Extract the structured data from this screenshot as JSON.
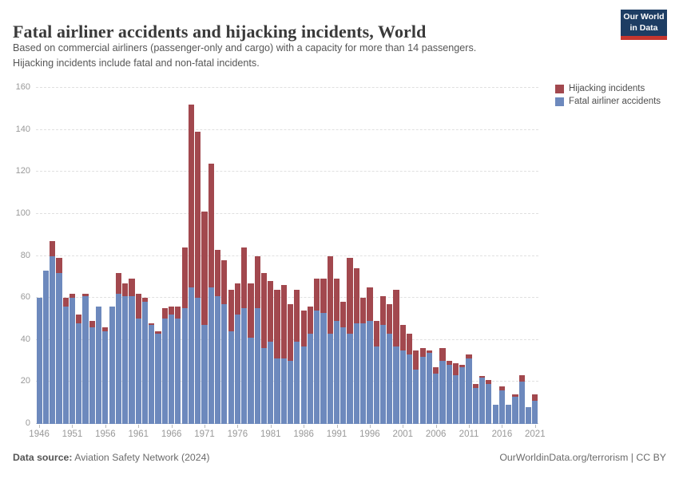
{
  "header": {
    "title": "Fatal airliner accidents and hijacking incidents, World",
    "subtitle_lines": {
      "0": "Based on commercial airliners (passenger-only and cargo) with a capacity for more than 14 passengers.",
      "1": "Hijacking incidents include fatal and non-fatal incidents."
    },
    "logo": {
      "line1": "Our World",
      "line2": "in Data",
      "bg_color": "#1d3d63",
      "accent_color": "#c5362e"
    }
  },
  "legend": {
    "items": [
      {
        "label": "Hijacking incidents",
        "color": "#a2484e"
      },
      {
        "label": "Fatal airliner accidents",
        "color": "#6d89bd"
      }
    ]
  },
  "chart_data": {
    "type": "bar",
    "stacked": true,
    "title": "Fatal airliner accidents and hijacking incidents, World",
    "xlabel": "",
    "ylabel": "",
    "ylim": [
      0,
      160
    ],
    "grid": "horizontal-dashed",
    "legend_position": "right",
    "x": [
      1946,
      1947,
      1948,
      1949,
      1950,
      1951,
      1952,
      1953,
      1954,
      1955,
      1956,
      1957,
      1958,
      1959,
      1960,
      1961,
      1962,
      1963,
      1964,
      1965,
      1966,
      1967,
      1968,
      1969,
      1970,
      1971,
      1972,
      1973,
      1974,
      1975,
      1976,
      1977,
      1978,
      1979,
      1980,
      1981,
      1982,
      1983,
      1984,
      1985,
      1986,
      1987,
      1988,
      1989,
      1990,
      1991,
      1992,
      1993,
      1994,
      1995,
      1996,
      1997,
      1998,
      1999,
      2000,
      2001,
      2002,
      2003,
      2004,
      2005,
      2006,
      2007,
      2008,
      2009,
      2010,
      2011,
      2012,
      2013,
      2014,
      2015,
      2016,
      2017,
      2018,
      2019,
      2020,
      2021
    ],
    "series": [
      {
        "name": "Fatal airliner accidents",
        "color": "#6d89bd",
        "values": [
          60,
          73,
          80,
          72,
          56,
          60,
          48,
          61,
          46,
          56,
          44,
          56,
          62,
          61,
          61,
          50,
          58,
          47,
          43,
          50,
          52,
          50,
          55,
          65,
          60,
          47,
          65,
          61,
          57,
          44,
          52,
          55,
          41,
          55,
          36,
          39,
          31,
          31,
          30,
          39,
          37,
          43,
          54,
          53,
          43,
          49,
          46,
          43,
          48,
          48,
          49,
          37,
          47,
          43,
          37,
          35,
          33,
          26,
          32,
          34,
          24,
          30,
          28,
          23,
          27,
          31,
          17,
          22,
          19,
          9,
          16,
          9,
          13,
          20,
          8,
          11
        ]
      },
      {
        "name": "Hijacking incidents",
        "color": "#a2484e",
        "values": [
          0,
          0,
          7,
          7,
          4,
          2,
          4,
          1,
          3,
          0,
          2,
          0,
          10,
          6,
          8,
          12,
          2,
          1,
          1,
          5,
          4,
          6,
          29,
          87,
          79,
          54,
          59,
          22,
          21,
          20,
          15,
          29,
          26,
          25,
          36,
          29,
          33,
          35,
          27,
          25,
          17,
          13,
          15,
          16,
          37,
          20,
          12,
          36,
          26,
          12,
          16,
          12,
          14,
          14,
          27,
          12,
          10,
          9,
          4,
          1,
          3,
          6,
          2,
          6,
          1,
          2,
          2,
          1,
          2,
          0,
          2,
          0,
          1,
          3,
          0,
          3
        ]
      }
    ],
    "y_ticks": [
      0,
      20,
      40,
      60,
      80,
      100,
      120,
      140,
      160
    ],
    "x_ticks": [
      1946,
      1951,
      1956,
      1961,
      1966,
      1971,
      1976,
      1981,
      1986,
      1991,
      1996,
      2001,
      2006,
      2011,
      2016,
      2021
    ]
  },
  "footer": {
    "source_label": "Data source:",
    "source_value": "Aviation Safety Network (2024)",
    "right_text": "OurWorldinData.org/terrorism | CC BY"
  }
}
